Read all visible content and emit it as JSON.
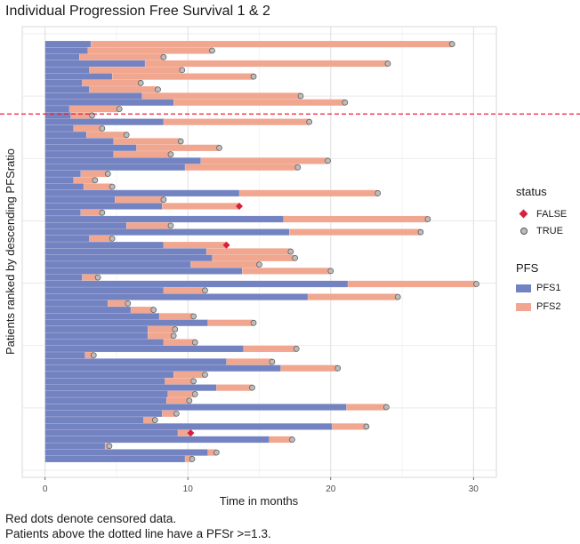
{
  "title": "Individual Progression Free Survival 1 & 2",
  "captions": [
    "Red dots denote censored data.",
    "Patients above the dotted line have a PFSr >=1.3."
  ],
  "chart_data": {
    "type": "bar",
    "orientation": "horizontal-stacked",
    "xlabel": "Time in months",
    "ylabel": "Patients ranked by descending PFSratio",
    "xlim": [
      -1.6,
      31.6
    ],
    "xticks": [
      0,
      10,
      20,
      30
    ],
    "grid": true,
    "threshold_line": {
      "label": "PFSr >=1.3",
      "after_row": 11,
      "style": "dashed",
      "color": "#e8203c"
    },
    "series": [
      {
        "name": "PFS1",
        "color": "#7383c2"
      },
      {
        "name": "PFS2",
        "color": "#f0a68f"
      }
    ],
    "status_colors": {
      "FALSE": "#d81f3d",
      "TRUE": "#bcbcbc"
    },
    "patients": [
      {
        "pfs1": 3.2,
        "pfs2_end": 28.5,
        "status": "TRUE"
      },
      {
        "pfs1": 3.0,
        "pfs2_end": 11.7,
        "status": "TRUE"
      },
      {
        "pfs1": 2.4,
        "pfs2_end": 8.3,
        "status": "TRUE"
      },
      {
        "pfs1": 7.0,
        "pfs2_end": 24.0,
        "status": "TRUE"
      },
      {
        "pfs1": 3.1,
        "pfs2_end": 9.6,
        "status": "TRUE"
      },
      {
        "pfs1": 4.7,
        "pfs2_end": 14.6,
        "status": "TRUE"
      },
      {
        "pfs1": 2.6,
        "pfs2_end": 6.7,
        "status": "TRUE"
      },
      {
        "pfs1": 3.1,
        "pfs2_end": 7.9,
        "status": "TRUE"
      },
      {
        "pfs1": 6.8,
        "pfs2_end": 17.9,
        "status": "TRUE"
      },
      {
        "pfs1": 9.0,
        "pfs2_end": 21.0,
        "status": "TRUE"
      },
      {
        "pfs1": 1.7,
        "pfs2_end": 5.2,
        "status": "TRUE"
      },
      {
        "pfs1": 1.8,
        "pfs2_end": 3.3,
        "status": "TRUE"
      },
      {
        "pfs1": 8.3,
        "pfs2_end": 18.5,
        "status": "TRUE"
      },
      {
        "pfs1": 2.0,
        "pfs2_end": 4.0,
        "status": "TRUE"
      },
      {
        "pfs1": 2.9,
        "pfs2_end": 5.7,
        "status": "TRUE"
      },
      {
        "pfs1": 4.8,
        "pfs2_end": 9.5,
        "status": "TRUE"
      },
      {
        "pfs1": 6.4,
        "pfs2_end": 12.2,
        "status": "TRUE"
      },
      {
        "pfs1": 4.8,
        "pfs2_end": 8.8,
        "status": "TRUE"
      },
      {
        "pfs1": 10.9,
        "pfs2_end": 19.8,
        "status": "TRUE"
      },
      {
        "pfs1": 9.8,
        "pfs2_end": 17.7,
        "status": "TRUE"
      },
      {
        "pfs1": 2.5,
        "pfs2_end": 4.4,
        "status": "TRUE"
      },
      {
        "pfs1": 2.0,
        "pfs2_end": 3.5,
        "status": "TRUE"
      },
      {
        "pfs1": 2.7,
        "pfs2_end": 4.7,
        "status": "TRUE"
      },
      {
        "pfs1": 13.6,
        "pfs2_end": 23.3,
        "status": "TRUE"
      },
      {
        "pfs1": 4.9,
        "pfs2_end": 8.3,
        "status": "TRUE"
      },
      {
        "pfs1": 8.2,
        "pfs2_end": 13.6,
        "status": "FALSE"
      },
      {
        "pfs1": 2.5,
        "pfs2_end": 4.0,
        "status": "TRUE"
      },
      {
        "pfs1": 16.7,
        "pfs2_end": 26.8,
        "status": "TRUE"
      },
      {
        "pfs1": 5.7,
        "pfs2_end": 8.8,
        "status": "TRUE"
      },
      {
        "pfs1": 17.1,
        "pfs2_end": 26.3,
        "status": "TRUE"
      },
      {
        "pfs1": 3.1,
        "pfs2_end": 4.7,
        "status": "TRUE"
      },
      {
        "pfs1": 8.3,
        "pfs2_end": 12.7,
        "status": "FALSE"
      },
      {
        "pfs1": 11.3,
        "pfs2_end": 17.2,
        "status": "TRUE"
      },
      {
        "pfs1": 11.7,
        "pfs2_end": 17.5,
        "status": "TRUE"
      },
      {
        "pfs1": 10.2,
        "pfs2_end": 15.0,
        "status": "TRUE"
      },
      {
        "pfs1": 13.8,
        "pfs2_end": 20.0,
        "status": "TRUE"
      },
      {
        "pfs1": 2.6,
        "pfs2_end": 3.7,
        "status": "TRUE"
      },
      {
        "pfs1": 21.2,
        "pfs2_end": 30.2,
        "status": "TRUE"
      },
      {
        "pfs1": 8.3,
        "pfs2_end": 11.2,
        "status": "TRUE"
      },
      {
        "pfs1": 18.4,
        "pfs2_end": 24.7,
        "status": "TRUE"
      },
      {
        "pfs1": 4.4,
        "pfs2_end": 5.8,
        "status": "TRUE"
      },
      {
        "pfs1": 6.0,
        "pfs2_end": 7.6,
        "status": "TRUE"
      },
      {
        "pfs1": 8.0,
        "pfs2_end": 10.4,
        "status": "TRUE"
      },
      {
        "pfs1": 11.4,
        "pfs2_end": 14.6,
        "status": "TRUE"
      },
      {
        "pfs1": 7.2,
        "pfs2_end": 9.1,
        "status": "TRUE"
      },
      {
        "pfs1": 7.2,
        "pfs2_end": 9.0,
        "status": "TRUE"
      },
      {
        "pfs1": 8.3,
        "pfs2_end": 10.5,
        "status": "TRUE"
      },
      {
        "pfs1": 13.9,
        "pfs2_end": 17.6,
        "status": "TRUE"
      },
      {
        "pfs1": 2.8,
        "pfs2_end": 3.4,
        "status": "TRUE"
      },
      {
        "pfs1": 12.7,
        "pfs2_end": 15.9,
        "status": "TRUE"
      },
      {
        "pfs1": 16.5,
        "pfs2_end": 20.5,
        "status": "TRUE"
      },
      {
        "pfs1": 9.0,
        "pfs2_end": 11.2,
        "status": "TRUE"
      },
      {
        "pfs1": 8.4,
        "pfs2_end": 10.4,
        "status": "TRUE"
      },
      {
        "pfs1": 12.0,
        "pfs2_end": 14.5,
        "status": "TRUE"
      },
      {
        "pfs1": 8.6,
        "pfs2_end": 10.5,
        "status": "TRUE"
      },
      {
        "pfs1": 8.5,
        "pfs2_end": 10.1,
        "status": "TRUE"
      },
      {
        "pfs1": 21.1,
        "pfs2_end": 23.9,
        "status": "TRUE"
      },
      {
        "pfs1": 8.2,
        "pfs2_end": 9.2,
        "status": "TRUE"
      },
      {
        "pfs1": 6.9,
        "pfs2_end": 7.7,
        "status": "TRUE"
      },
      {
        "pfs1": 20.1,
        "pfs2_end": 22.5,
        "status": "TRUE"
      },
      {
        "pfs1": 9.3,
        "pfs2_end": 10.2,
        "status": "FALSE"
      },
      {
        "pfs1": 15.7,
        "pfs2_end": 17.3,
        "status": "TRUE"
      },
      {
        "pfs1": 4.2,
        "pfs2_end": 4.5,
        "status": "TRUE"
      },
      {
        "pfs1": 11.4,
        "pfs2_end": 12.0,
        "status": "TRUE"
      },
      {
        "pfs1": 9.8,
        "pfs2_end": 10.3,
        "status": "TRUE"
      }
    ]
  },
  "legend": {
    "status_title": "status",
    "status_false": "FALSE",
    "status_true": "TRUE",
    "pfs_title": "PFS",
    "pfs1": "PFS1",
    "pfs2": "PFS2"
  }
}
